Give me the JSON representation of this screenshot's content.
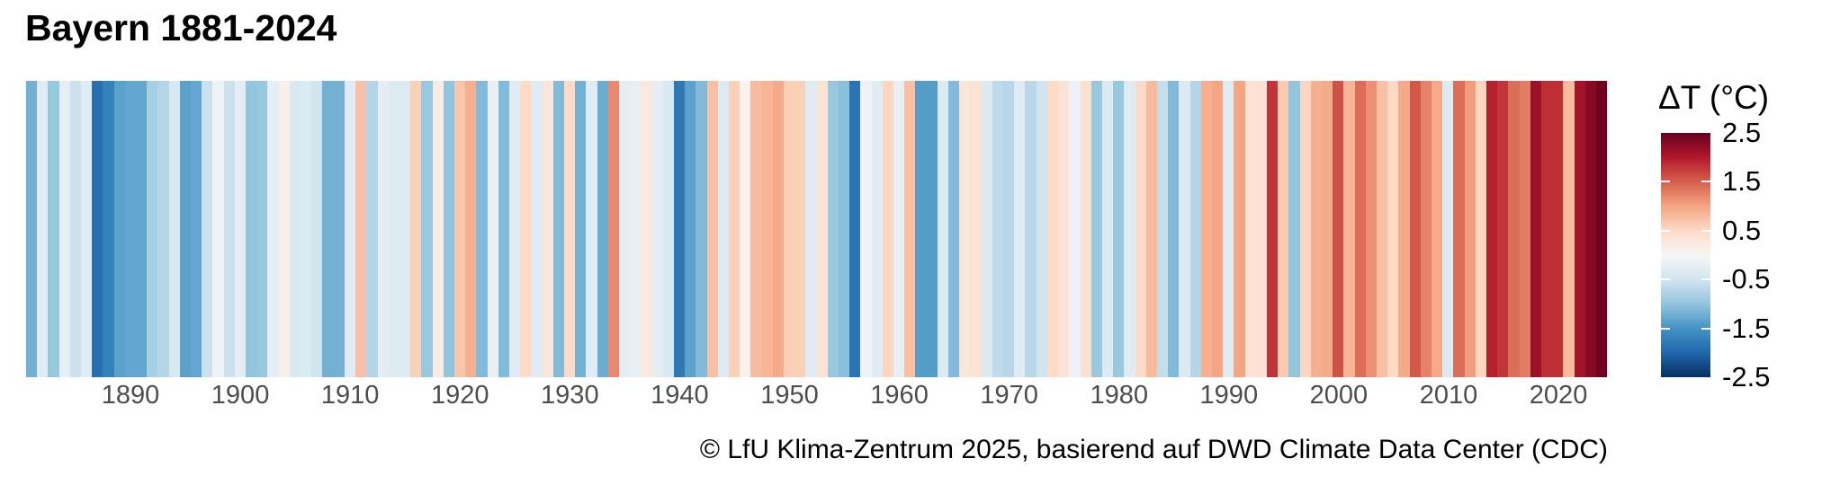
{
  "title": "Bayern 1881-2024",
  "caption": "© LfU Klima-Zentrum 2025, basierend auf DWD Climate Data Center (CDC)",
  "x_axis": {
    "tick_labels": [
      "1890",
      "1900",
      "1910",
      "1920",
      "1930",
      "1940",
      "1950",
      "1960",
      "1970",
      "1980",
      "1990",
      "2000",
      "2010",
      "2020"
    ],
    "tick_years": [
      1890,
      1900,
      1910,
      1920,
      1930,
      1940,
      1950,
      1960,
      1970,
      1980,
      1990,
      2000,
      2010,
      2020
    ]
  },
  "legend": {
    "title": "ΔT (°C)",
    "tick_labels": [
      "2.5",
      "1.5",
      "0.5",
      "-0.5",
      "-1.5",
      "-2.5"
    ],
    "tick_values": [
      2.5,
      1.5,
      0.5,
      -0.5,
      -1.5,
      -2.5
    ],
    "inner_tick_values": [
      1.5,
      0.5,
      -0.5,
      -1.5
    ],
    "range": [
      -2.5,
      2.5
    ]
  },
  "chart_data": {
    "type": "heatmap",
    "subtype": "warming-stripes",
    "title": "Bayern 1881-2024",
    "unit": "°C anomaly (ΔT)",
    "year_start": 1881,
    "year_end": 2024,
    "xlabel": "",
    "ylabel": "",
    "color_range": [
      -2.5,
      2.5
    ],
    "colormap": {
      "name": "RdBu-reversed",
      "stops_low_to_high": [
        "#053061",
        "#2166ac",
        "#4393c3",
        "#92c5de",
        "#d1e5f0",
        "#f7f7f7",
        "#fddbc7",
        "#f4a582",
        "#d6604d",
        "#b2182b",
        "#67001f"
      ]
    },
    "values": [
      -1.2,
      -0.3,
      -0.95,
      -0.25,
      -0.55,
      -0.3,
      -1.9,
      -1.7,
      -1.35,
      -1.3,
      -1.3,
      -0.85,
      -0.75,
      -0.4,
      -1.35,
      -1.3,
      -0.55,
      -0.1,
      -0.55,
      -0.25,
      -1.0,
      -0.95,
      -0.25,
      0.15,
      -0.4,
      -0.35,
      -0.5,
      -1.2,
      -1.2,
      -0.3,
      0.75,
      -0.75,
      -0.25,
      -0.35,
      -0.35,
      0.6,
      -0.95,
      0.2,
      -1.0,
      0.7,
      0.9,
      -1.1,
      -0.2,
      -1.1,
      -0.3,
      0.5,
      -0.3,
      0.3,
      -1.1,
      0.5,
      -1.2,
      -0.3,
      -1.25,
      1.2,
      -0.25,
      -0.2,
      0.25,
      -0.25,
      -0.4,
      -1.8,
      -1.35,
      -1.1,
      0.75,
      -0.35,
      0.6,
      0.1,
      0.8,
      0.85,
      0.95,
      0.6,
      0.6,
      -0.3,
      0.35,
      -0.95,
      -1.05,
      -1.85,
      -0.1,
      -0.3,
      0.55,
      -0.2,
      0.75,
      -1.4,
      -1.4,
      -0.35,
      -1.1,
      0.3,
      0.35,
      -0.35,
      -0.65,
      -0.7,
      -0.3,
      -0.7,
      -0.5,
      0.5,
      0.35,
      -0.15,
      0.4,
      -0.95,
      -0.35,
      -0.95,
      -0.3,
      0.5,
      0.8,
      -0.6,
      -1.1,
      -0.35,
      -0.75,
      0.9,
      1.0,
      -0.3,
      1.0,
      0.35,
      0.4,
      1.8,
      0.65,
      -1.0,
      0.55,
      0.9,
      0.95,
      1.6,
      0.85,
      1.4,
      1.15,
      0.75,
      0.5,
      0.95,
      1.55,
      1.25,
      0.95,
      -0.35,
      1.4,
      1.05,
      0.55,
      1.95,
      1.8,
      1.4,
      1.3,
      2.15,
      1.85,
      1.85,
      0.8,
      2.1,
      2.3,
      2.45
    ]
  }
}
